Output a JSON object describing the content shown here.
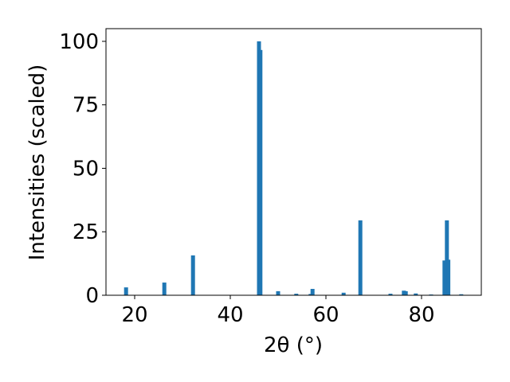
{
  "chart_data": {
    "type": "bar",
    "xlabel": "2θ (°)",
    "ylabel": "Intensities (scaled)",
    "x": [
      18.2,
      26.2,
      32.2,
      46.0,
      46.3,
      50.0,
      53.8,
      56.8,
      57.2,
      63.7,
      67.2,
      73.5,
      76.3,
      76.7,
      78.8,
      82.0,
      84.8,
      85.3,
      85.6,
      88.3
    ],
    "values": [
      3.1,
      5.0,
      15.7,
      100,
      96.6,
      1.6,
      0.6,
      0.5,
      2.5,
      1.0,
      29.5,
      0.6,
      1.8,
      1.6,
      0.7,
      0.3,
      13.7,
      29.5,
      14.0,
      0.4
    ],
    "color": "#1f77b4",
    "xlim": [
      14,
      92.5
    ],
    "xticks": [
      20,
      40,
      60,
      80
    ],
    "ylim": [
      0,
      105
    ],
    "yticks": [
      0,
      25,
      50,
      75,
      100
    ],
    "grid": false
  }
}
